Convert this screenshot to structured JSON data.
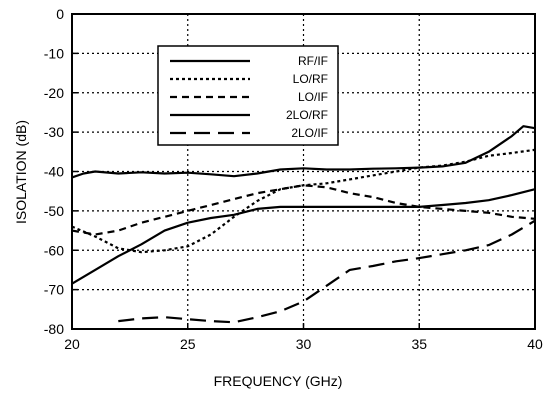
{
  "chart_data": {
    "type": "line",
    "title": "",
    "xlabel": "FREQUENCY (GHz)",
    "ylabel": "ISOLATION (dB)",
    "xlim": [
      20,
      40
    ],
    "ylim": [
      -80,
      0
    ],
    "x_ticks": [
      20,
      25,
      30,
      35,
      40
    ],
    "y_ticks": [
      0,
      -10,
      -20,
      -30,
      -40,
      -50,
      -60,
      -70,
      -80
    ],
    "x_tick_labels": [
      "20",
      "25",
      "30",
      "35",
      "40"
    ],
    "y_tick_labels": [
      "0",
      "-10",
      "-20",
      "-30",
      "-40",
      "-50",
      "-60",
      "-70",
      "-80"
    ],
    "grid": true,
    "grid_style": "dotted",
    "legend_placement": "top-left",
    "series": [
      {
        "name": "RF/IF",
        "style": "solid",
        "points": [
          [
            20,
            -41.5
          ],
          [
            20.5,
            -40.5
          ],
          [
            21,
            -40
          ],
          [
            22,
            -40.5
          ],
          [
            23,
            -40.2
          ],
          [
            24,
            -40.5
          ],
          [
            25,
            -40.3
          ],
          [
            26,
            -40.7
          ],
          [
            27,
            -41.2
          ],
          [
            28,
            -40.5
          ],
          [
            29,
            -39.5
          ],
          [
            30,
            -39.2
          ],
          [
            31,
            -39.5
          ],
          [
            32,
            -39.5
          ],
          [
            33,
            -39.3
          ],
          [
            34,
            -39.2
          ],
          [
            35,
            -39
          ],
          [
            36,
            -38.7
          ],
          [
            37,
            -37.8
          ],
          [
            38,
            -35
          ],
          [
            39,
            -31
          ],
          [
            39.5,
            -28.5
          ],
          [
            40,
            -29
          ]
        ]
      },
      {
        "name": "LO/RF",
        "style": "dotted",
        "points": [
          [
            20,
            -54
          ],
          [
            21,
            -56.5
          ],
          [
            22,
            -59.5
          ],
          [
            23,
            -60.5
          ],
          [
            24,
            -60
          ],
          [
            25,
            -59
          ],
          [
            26,
            -56
          ],
          [
            27,
            -51.5
          ],
          [
            28,
            -47.5
          ],
          [
            29,
            -44.5
          ],
          [
            30,
            -43.5
          ],
          [
            31,
            -43
          ],
          [
            32,
            -42
          ],
          [
            33,
            -41
          ],
          [
            34,
            -40
          ],
          [
            35,
            -39
          ],
          [
            36,
            -38.5
          ],
          [
            37,
            -37.5
          ],
          [
            38,
            -36
          ],
          [
            39,
            -35.3
          ],
          [
            40,
            -34.5
          ]
        ]
      },
      {
        "name": "LO/IF",
        "style": "dashed",
        "points": [
          [
            20,
            -55
          ],
          [
            21,
            -56
          ],
          [
            22,
            -55
          ],
          [
            23,
            -53
          ],
          [
            24,
            -51.5
          ],
          [
            25,
            -50
          ],
          [
            26,
            -48.5
          ],
          [
            27,
            -47
          ],
          [
            28,
            -45.5
          ],
          [
            29,
            -44.5
          ],
          [
            30,
            -43.5
          ],
          [
            31,
            -44
          ],
          [
            32,
            -45.5
          ],
          [
            33,
            -46.5
          ],
          [
            34,
            -48
          ],
          [
            35,
            -49
          ],
          [
            36,
            -49.5
          ],
          [
            37,
            -50
          ],
          [
            38,
            -50.5
          ],
          [
            39,
            -51.5
          ],
          [
            40,
            -52
          ]
        ]
      },
      {
        "name": "2LO/RF",
        "style": "solid",
        "points": [
          [
            20,
            -68.5
          ],
          [
            21,
            -65
          ],
          [
            22,
            -61.5
          ],
          [
            23,
            -58.5
          ],
          [
            24,
            -55
          ],
          [
            25,
            -53
          ],
          [
            26,
            -51.8
          ],
          [
            27,
            -51
          ],
          [
            28,
            -49.5
          ],
          [
            29,
            -49
          ],
          [
            30,
            -49
          ],
          [
            31,
            -49
          ],
          [
            32,
            -49
          ],
          [
            33,
            -49
          ],
          [
            34,
            -49
          ],
          [
            35,
            -49
          ],
          [
            36,
            -48.5
          ],
          [
            37,
            -48
          ],
          [
            38,
            -47.3
          ],
          [
            39,
            -46
          ],
          [
            40,
            -44.5
          ]
        ]
      },
      {
        "name": "2LO/IF",
        "style": "longdash",
        "points": [
          [
            22,
            -78
          ],
          [
            23,
            -77.3
          ],
          [
            24,
            -77
          ],
          [
            25,
            -77.5
          ],
          [
            26,
            -78
          ],
          [
            27,
            -78.3
          ],
          [
            28,
            -77
          ],
          [
            29,
            -75.5
          ],
          [
            30,
            -73
          ],
          [
            31,
            -69
          ],
          [
            32,
            -65
          ],
          [
            33,
            -64
          ],
          [
            34,
            -62.8
          ],
          [
            35,
            -62
          ],
          [
            36,
            -61
          ],
          [
            37,
            -60
          ],
          [
            38,
            -58.7
          ],
          [
            39,
            -56
          ],
          [
            40,
            -52.5
          ]
        ]
      }
    ]
  }
}
